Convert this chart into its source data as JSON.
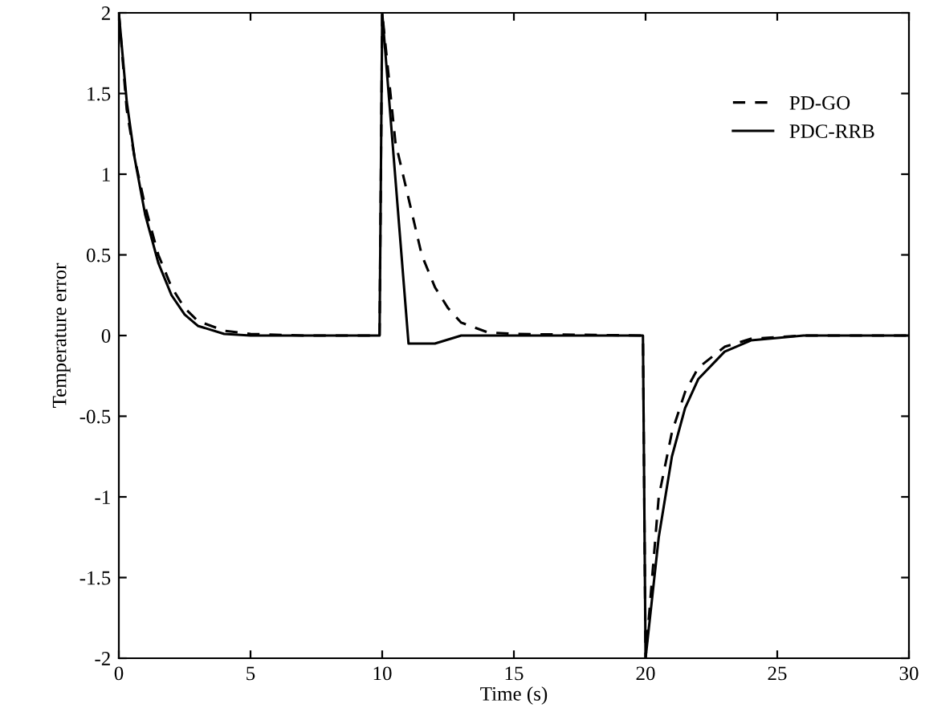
{
  "chart_data": {
    "type": "line",
    "xlabel": "Time (s)",
    "ylabel": "Temperature error",
    "xlim": [
      0,
      30
    ],
    "xticks": [
      0,
      5,
      10,
      15,
      20,
      25,
      30
    ],
    "ylim": [
      -2,
      2
    ],
    "yticks": [
      -2,
      -1.5,
      -1,
      -0.5,
      0,
      0.5,
      1,
      1.5,
      2
    ],
    "grid": false,
    "legend": "top right",
    "series": [
      {
        "name": "PD-GO",
        "color": "#000000",
        "line_style": "dashed",
        "x": [
          0,
          0.3,
          0.6,
          1,
          1.5,
          2,
          2.5,
          3,
          4,
          5,
          7,
          9.9,
          10,
          10.5,
          11,
          11.5,
          12,
          12.5,
          13,
          14,
          15,
          19.9,
          20,
          20.5,
          21,
          21.5,
          22,
          23,
          24,
          26,
          30
        ],
        "values": [
          2,
          1.4,
          1.1,
          0.8,
          0.5,
          0.3,
          0.17,
          0.09,
          0.03,
          0.01,
          0,
          0,
          2,
          1.2,
          0.85,
          0.5,
          0.3,
          0.17,
          0.08,
          0.02,
          0.01,
          0,
          -2,
          -1.0,
          -0.6,
          -0.35,
          -0.2,
          -0.07,
          -0.02,
          0,
          0
        ]
      },
      {
        "name": "PDC-RRB",
        "color": "#000000",
        "line_style": "solid",
        "x": [
          0,
          0.3,
          0.6,
          1,
          1.5,
          2,
          2.5,
          3,
          4,
          5,
          7,
          9.9,
          10,
          11,
          11.5,
          12,
          13,
          15,
          19.9,
          20,
          20.5,
          21,
          21.5,
          22,
          23,
          24,
          26,
          30
        ],
        "values": [
          2,
          1.45,
          1.1,
          0.75,
          0.45,
          0.25,
          0.13,
          0.06,
          0.01,
          0,
          0,
          0,
          2,
          -0.05,
          -0.05,
          -0.05,
          0,
          0,
          0,
          -2,
          -1.25,
          -0.75,
          -0.45,
          -0.27,
          -0.1,
          -0.03,
          0,
          0
        ]
      }
    ]
  }
}
